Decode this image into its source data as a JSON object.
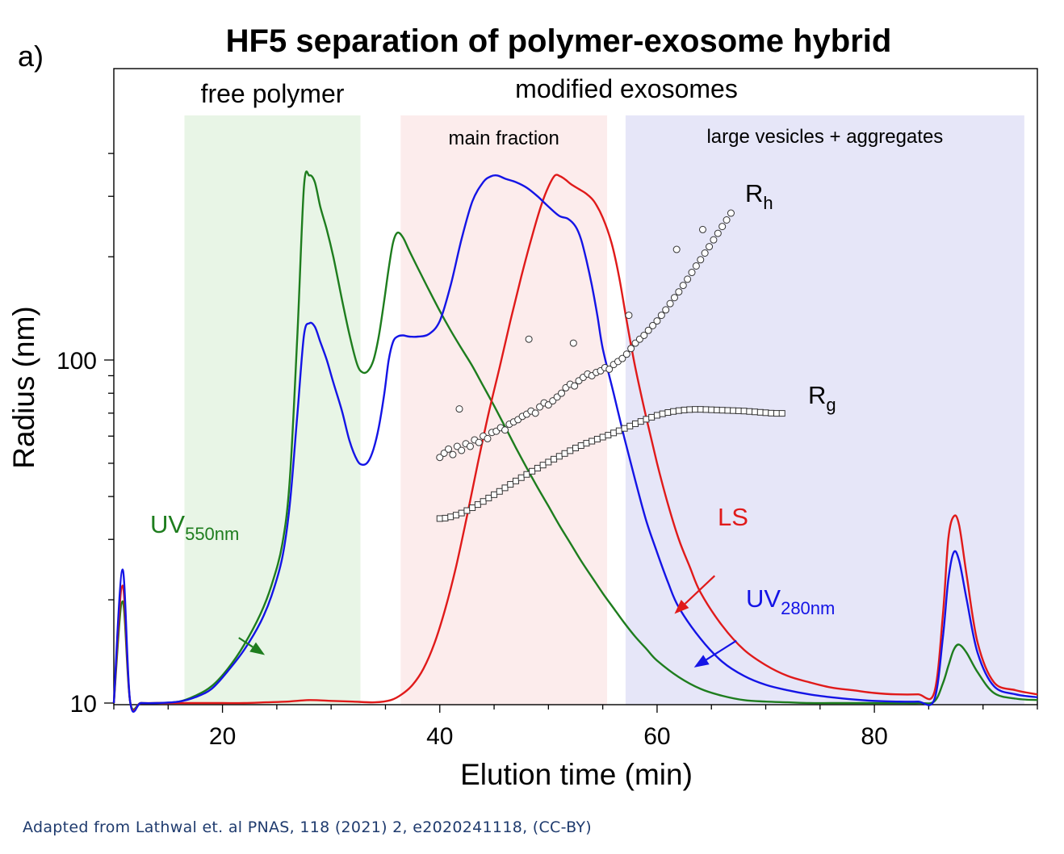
{
  "panel_label": "a)",
  "caption": "Adapted from Lathwal et. al PNAS, 118 (2021) 2, e2020241118, (CC-BY)",
  "chart_data": {
    "type": "line",
    "title": "HF5 separation of polymer-exosome hybrid",
    "xlabel": "Elution time (min)",
    "ylabel": "Radius (nm)",
    "xlim": [
      10,
      95
    ],
    "ylim": [
      10,
      450
    ],
    "yscale": "log",
    "x_ticks": [
      20,
      40,
      60,
      80
    ],
    "x_tick_labels": [
      "20",
      "40",
      "60",
      "80"
    ],
    "y_ticks": [
      10,
      100
    ],
    "y_tick_labels": [
      "10",
      "100"
    ],
    "grid": false,
    "regions": [
      {
        "label": "free polymer",
        "x0": 16.5,
        "x1": 32.7,
        "color": "#e8f5e6"
      },
      {
        "label": "main fraction",
        "x0": 36.4,
        "x1": 55.4,
        "color": "#fcecec"
      },
      {
        "label": "large vesicles + aggregates",
        "x0": 57.1,
        "x1": 93.8,
        "color": "#e6e6f8"
      }
    ],
    "group_label": "modified exosomes",
    "series": [
      {
        "name": "UV",
        "subscript": "550nm",
        "color": "#1e7d1e",
        "x": [
          10,
          10.8,
          11.5,
          12.5,
          14,
          16,
          17.5,
          19,
          20.5,
          22,
          23.5,
          24.5,
          25.5,
          26.2,
          26.9,
          27.5,
          28,
          28.5,
          29,
          29.6,
          30.2,
          31,
          31.7,
          32.4,
          32.9,
          33.4,
          33.9,
          34.4,
          34.9,
          35.3,
          35.7,
          36.1,
          36.6,
          37.2,
          38,
          39,
          40,
          41,
          42,
          43,
          44,
          45,
          46,
          47,
          48,
          49,
          50,
          51,
          52,
          53,
          54,
          55,
          56,
          57,
          58,
          59,
          60,
          62,
          64,
          66,
          68,
          70,
          72,
          74,
          76,
          78,
          80,
          82,
          84,
          85.5,
          86.3,
          86.8,
          87.3,
          87.8,
          88.5,
          89.5,
          91,
          93,
          95
        ],
        "y": [
          10,
          19.8,
          10.1,
          10,
          10,
          10.1,
          10.5,
          11.2,
          12.6,
          14.8,
          18.2,
          22,
          29,
          45,
          120,
          320,
          345,
          330,
          280,
          240,
          200,
          150,
          118,
          97,
          92,
          93,
          100,
          118,
          150,
          185,
          220,
          235,
          228,
          208,
          185,
          160,
          139,
          122,
          108,
          96,
          84,
          73.5,
          64,
          55.5,
          48.5,
          42.5,
          37.5,
          33,
          29.3,
          26,
          23.3,
          20.9,
          18.9,
          17.1,
          15.6,
          14.4,
          13.3,
          11.9,
          11,
          10.5,
          10.2,
          10.1,
          10.05,
          10,
          10,
          10,
          10,
          10,
          10,
          10.1,
          11.4,
          12.8,
          14.3,
          14.8,
          14,
          12.3,
          10.7,
          10.3,
          10.2
        ]
      },
      {
        "name": "UV",
        "subscript": "280nm",
        "color": "#1414e6",
        "x": [
          10,
          10.8,
          11.5,
          12.5,
          14,
          16,
          17.5,
          19,
          20.5,
          22,
          23.5,
          24.5,
          25.5,
          26.2,
          26.9,
          27.5,
          28,
          28.5,
          29,
          29.6,
          30.2,
          31,
          31.7,
          32.4,
          32.9,
          33.4,
          33.9,
          34.4,
          34.9,
          35.3,
          35.7,
          36.1,
          36.6,
          37.2,
          38,
          39,
          40,
          41,
          42,
          43,
          44,
          44.7,
          45.3,
          46,
          47,
          48,
          49,
          50,
          51,
          51.8,
          52.5,
          53,
          53.5,
          54,
          54.5,
          55,
          56,
          57,
          58,
          59,
          60,
          61,
          62,
          64,
          66,
          68,
          70,
          72,
          74,
          76,
          78,
          80,
          82,
          84,
          85.5,
          86.3,
          86.8,
          87.3,
          87.8,
          88.5,
          89.5,
          91,
          93,
          95
        ],
        "y": [
          10,
          24.5,
          10.1,
          10,
          10,
          10.1,
          10.4,
          11,
          12.4,
          14.3,
          17.2,
          20.5,
          26.5,
          38,
          70,
          118,
          128,
          125,
          113,
          100,
          86,
          71,
          58,
          51,
          49.5,
          50.5,
          55,
          64,
          80,
          100,
          113,
          117,
          118,
          117,
          117,
          119,
          130,
          165,
          225,
          290,
          330,
          343,
          345,
          338,
          330,
          318,
          300,
          280,
          263,
          258,
          245,
          225,
          195,
          165,
          135,
          108,
          80,
          59,
          44.5,
          34,
          27.5,
          22.5,
          19,
          15.4,
          13.2,
          12,
          11.3,
          10.9,
          10.6,
          10.4,
          10.25,
          10.15,
          10.1,
          10.1,
          10.2,
          15.5,
          22.8,
          27.5,
          26,
          20,
          14,
          11.2,
          10.6,
          10.4
        ]
      },
      {
        "name": "LS",
        "color": "#e01a1a",
        "x": [
          10,
          10.8,
          11.5,
          12.5,
          14,
          16,
          18,
          20,
          22,
          24,
          26,
          28,
          30,
          32,
          34,
          35.5,
          36.5,
          37.5,
          38.5,
          39.5,
          40.5,
          41.5,
          42.5,
          43.5,
          44.5,
          45.5,
          46.5,
          47.5,
          48.5,
          49.3,
          50,
          50.6,
          51.1,
          51.6,
          52.1,
          52.8,
          53.5,
          54.2,
          55,
          55.8,
          56.5,
          57.2,
          58,
          59,
          60,
          61,
          62,
          63,
          64,
          66,
          68,
          70,
          72,
          74,
          76,
          78,
          80,
          82,
          84,
          85.5,
          86.3,
          86.8,
          87.3,
          87.8,
          88.5,
          89.5,
          91,
          93,
          95
        ],
        "y": [
          10,
          22,
          10.1,
          10,
          10,
          10,
          10,
          10,
          10,
          10.05,
          10.1,
          10.2,
          10.15,
          10.1,
          10.05,
          10.2,
          10.6,
          11.3,
          12.6,
          14.9,
          18.8,
          25,
          35,
          50,
          70,
          95,
          130,
          175,
          230,
          280,
          320,
          345,
          343,
          335,
          325,
          315,
          305,
          290,
          260,
          220,
          175,
          130,
          95,
          68,
          50,
          38,
          30,
          25,
          21,
          16.8,
          14.3,
          12.9,
          12,
          11.5,
          11.1,
          10.9,
          10.7,
          10.6,
          10.6,
          10.7,
          18,
          30,
          35,
          33,
          23.5,
          15,
          11.5,
          10.9,
          10.6
        ]
      }
    ],
    "scatter_series": [
      {
        "name": "R",
        "subscript": "h",
        "marker": "circle",
        "x": [
          40,
          40.4,
          40.8,
          41.2,
          41.6,
          42,
          42.4,
          42.8,
          43.2,
          43.6,
          44,
          44.4,
          44.8,
          45.2,
          45.6,
          46,
          46.4,
          46.8,
          47.2,
          47.6,
          48,
          48.4,
          48.8,
          49.2,
          49.6,
          50,
          50.4,
          50.8,
          51.2,
          51.6,
          52,
          52.4,
          52.8,
          53.2,
          53.6,
          54,
          54.4,
          54.8,
          55.2,
          55.6,
          56,
          56.4,
          56.8,
          57.2,
          57.6,
          58,
          58.4,
          58.8,
          59.2,
          59.6,
          60,
          60.4,
          60.8,
          61.2,
          61.6,
          62,
          62.4,
          62.8,
          63.2,
          63.6,
          64,
          64.4,
          64.8,
          65.2,
          65.6,
          66,
          66.4,
          66.8,
          41.8,
          48.2,
          52.3,
          57.4,
          61.8,
          64.2
        ],
        "y": [
          52,
          53.5,
          55,
          53,
          56,
          54.5,
          57,
          56,
          58.5,
          57.5,
          60,
          59,
          61.5,
          62,
          63.5,
          62.5,
          65,
          66,
          67,
          68.5,
          69.5,
          71,
          70,
          73,
          75,
          74,
          76,
          78,
          80,
          83,
          85,
          84,
          87,
          89,
          91,
          90,
          92,
          93,
          95,
          94,
          97,
          99,
          101,
          104,
          108,
          112,
          115,
          118,
          122,
          126,
          130,
          135,
          140,
          146,
          152,
          158,
          165,
          172,
          180,
          188,
          196,
          205,
          214,
          224,
          234,
          245,
          256,
          268,
          72,
          115,
          112,
          135,
          210,
          240
        ]
      },
      {
        "name": "R",
        "subscript": "g",
        "marker": "square",
        "x": [
          40,
          40.5,
          41,
          41.5,
          42,
          42.5,
          43,
          43.5,
          44,
          44.5,
          45,
          45.5,
          46,
          46.5,
          47,
          47.5,
          48,
          48.5,
          49,
          49.5,
          50,
          50.5,
          51,
          51.5,
          52,
          52.5,
          53,
          53.5,
          54,
          54.5,
          55,
          55.5,
          56,
          56.5,
          57,
          57.5,
          58,
          58.5,
          59,
          59.5,
          60,
          60.5,
          61,
          61.5,
          62,
          62.5,
          63,
          63.5,
          64,
          64.5,
          65,
          65.5,
          66,
          66.5,
          67,
          67.5,
          68,
          68.5,
          69,
          69.5,
          70,
          70.5,
          71,
          71.5
        ],
        "y": [
          34.5,
          34.6,
          34.9,
          35.3,
          35.8,
          36.4,
          37.1,
          37.9,
          38.7,
          39.6,
          40.5,
          41.4,
          42.4,
          43.4,
          44.4,
          45.4,
          46.4,
          47.4,
          48.4,
          49.4,
          50.4,
          51.4,
          52.4,
          53.4,
          54.4,
          55.4,
          56.3,
          57.2,
          58,
          58.8,
          59.6,
          60.4,
          61.3,
          62.2,
          63.2,
          64.2,
          65.2,
          66.2,
          67.2,
          68.1,
          69,
          69.7,
          70.3,
          70.8,
          71.2,
          71.5,
          71.7,
          71.8,
          71.8,
          71.7,
          71.6,
          71.5,
          71.4,
          71.3,
          71.2,
          71.1,
          71,
          70.8,
          70.6,
          70.4,
          70.2,
          70,
          69.9,
          69.9
        ]
      }
    ],
    "arrows": [
      {
        "label": "UV550nm",
        "from": [
          21.5,
          15.5
        ],
        "to": [
          23.9,
          13.8
        ],
        "color": "#1e7d1e"
      },
      {
        "label": "LS",
        "from": [
          65.3,
          23.5
        ],
        "to": [
          61.6,
          18.2
        ],
        "color": "#e01a1a"
      },
      {
        "label": "UV280nm",
        "from": [
          67.3,
          15.2
        ],
        "to": [
          63.4,
          12.7
        ],
        "color": "#1414e6"
      }
    ]
  }
}
